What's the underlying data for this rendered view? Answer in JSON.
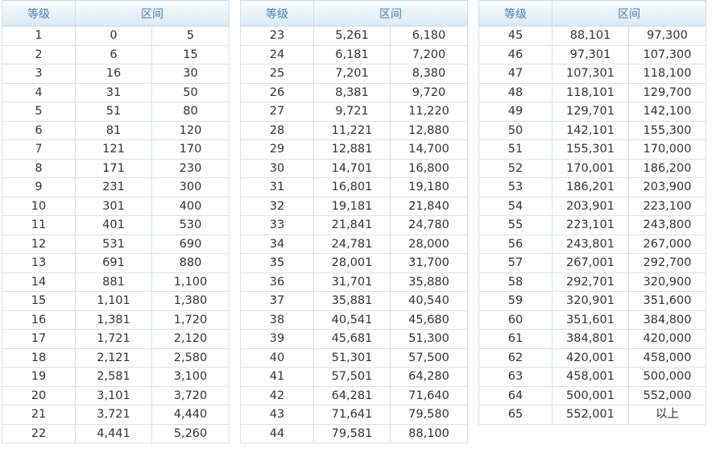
{
  "headers": {
    "level": "等级",
    "range": "区间"
  },
  "tables": [
    {
      "rows": [
        [
          "1",
          "0",
          "5"
        ],
        [
          "2",
          "6",
          "15"
        ],
        [
          "3",
          "16",
          "30"
        ],
        [
          "4",
          "31",
          "50"
        ],
        [
          "5",
          "51",
          "80"
        ],
        [
          "6",
          "81",
          "120"
        ],
        [
          "7",
          "121",
          "170"
        ],
        [
          "8",
          "171",
          "230"
        ],
        [
          "9",
          "231",
          "300"
        ],
        [
          "10",
          "301",
          "400"
        ],
        [
          "11",
          "401",
          "530"
        ],
        [
          "12",
          "531",
          "690"
        ],
        [
          "13",
          "691",
          "880"
        ],
        [
          "14",
          "881",
          "1,100"
        ],
        [
          "15",
          "1,101",
          "1,380"
        ],
        [
          "16",
          "1,381",
          "1,720"
        ],
        [
          "17",
          "1,721",
          "2,120"
        ],
        [
          "18",
          "2,121",
          "2,580"
        ],
        [
          "19",
          "2,581",
          "3,100"
        ],
        [
          "20",
          "3,101",
          "3,720"
        ],
        [
          "21",
          "3,721",
          "4,440"
        ],
        [
          "22",
          "4,441",
          "5,260"
        ]
      ]
    },
    {
      "rows": [
        [
          "23",
          "5,261",
          "6,180"
        ],
        [
          "24",
          "6,181",
          "7,200"
        ],
        [
          "25",
          "7,201",
          "8,380"
        ],
        [
          "26",
          "8,381",
          "9,720"
        ],
        [
          "27",
          "9,721",
          "11,220"
        ],
        [
          "28",
          "11,221",
          "12,880"
        ],
        [
          "29",
          "12,881",
          "14,700"
        ],
        [
          "30",
          "14,701",
          "16,800"
        ],
        [
          "31",
          "16,801",
          "19,180"
        ],
        [
          "32",
          "19,181",
          "21,840"
        ],
        [
          "33",
          "21,841",
          "24,780"
        ],
        [
          "34",
          "24,781",
          "28,000"
        ],
        [
          "35",
          "28,001",
          "31,700"
        ],
        [
          "36",
          "31,701",
          "35,880"
        ],
        [
          "37",
          "35,881",
          "40,540"
        ],
        [
          "38",
          "40,541",
          "45,680"
        ],
        [
          "39",
          "45,681",
          "51,300"
        ],
        [
          "40",
          "51,301",
          "57,500"
        ],
        [
          "41",
          "57,501",
          "64,280"
        ],
        [
          "42",
          "64,281",
          "71,640"
        ],
        [
          "43",
          "71,641",
          "79,580"
        ],
        [
          "44",
          "79,581",
          "88,100"
        ]
      ]
    },
    {
      "rows": [
        [
          "45",
          "88,101",
          "97,300"
        ],
        [
          "46",
          "97,301",
          "107,300"
        ],
        [
          "47",
          "107,301",
          "118,100"
        ],
        [
          "48",
          "118,101",
          "129,700"
        ],
        [
          "49",
          "129,701",
          "142,100"
        ],
        [
          "50",
          "142,101",
          "155,300"
        ],
        [
          "51",
          "155,301",
          "170,000"
        ],
        [
          "52",
          "170,001",
          "186,200"
        ],
        [
          "53",
          "186,201",
          "203,900"
        ],
        [
          "54",
          "203,901",
          "223,100"
        ],
        [
          "55",
          "223,101",
          "243,800"
        ],
        [
          "56",
          "243,801",
          "267,000"
        ],
        [
          "57",
          "267,001",
          "292,700"
        ],
        [
          "58",
          "292,701",
          "320,900"
        ],
        [
          "59",
          "320,901",
          "351,600"
        ],
        [
          "60",
          "351,601",
          "384,800"
        ],
        [
          "61",
          "384,801",
          "420,000"
        ],
        [
          "62",
          "420,001",
          "458,000"
        ],
        [
          "63",
          "458,001",
          "500,000"
        ],
        [
          "64",
          "500,001",
          "552,000"
        ],
        [
          "65",
          "552,001",
          "以上"
        ]
      ]
    }
  ]
}
